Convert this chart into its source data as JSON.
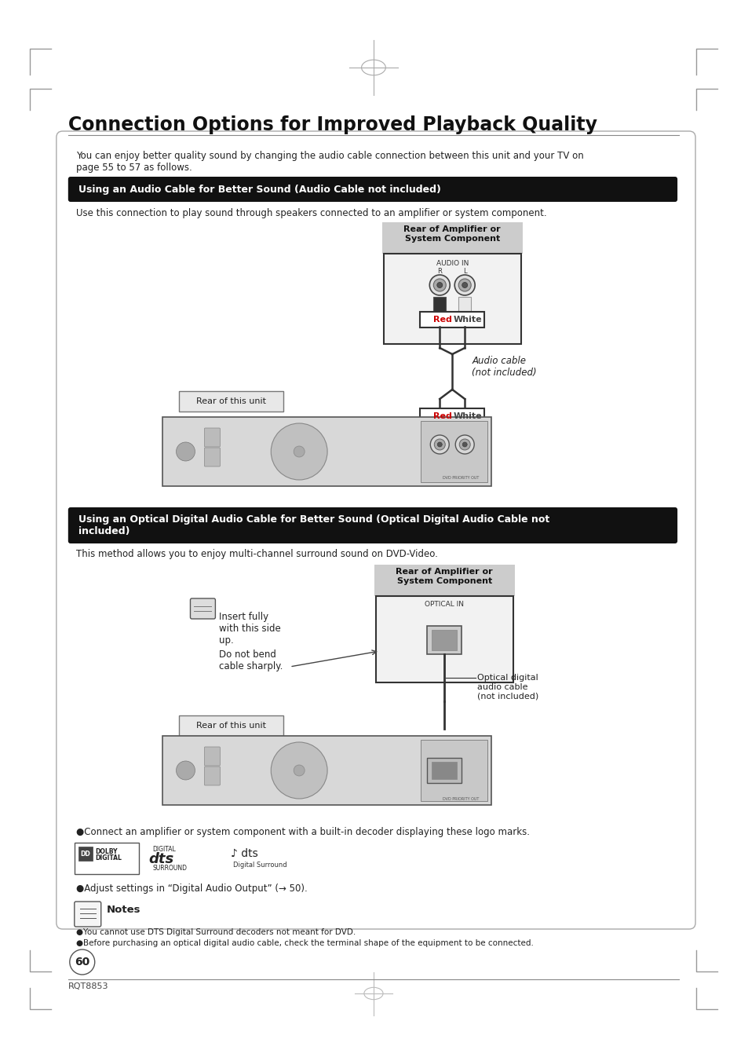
{
  "title": "Connection Options for Improved Playback Quality",
  "bg_color": "#ffffff",
  "page_num": "60",
  "model": "RQT8853",
  "intro_text": "You can enjoy better quality sound by changing the audio cable connection between this unit and your TV on\npage 55 to 57 as follows.",
  "section1_title": "Using an Audio Cable for Better Sound (Audio Cable not included)",
  "section1_desc": "Use this connection to play sound through speakers connected to an amplifier or system component.",
  "section2_title": "Using an Optical Digital Audio Cable for Better Sound (Optical Digital Audio Cable not\nincluded)",
  "section2_desc": "This method allows you to enjoy multi-channel surround sound on DVD-Video.",
  "bullet1": "●Connect an amplifier or system component with a built-in decoder displaying these logo marks.",
  "bullet2": "●Adjust settings in “Digital Audio Output” (→ 50).",
  "notes_title": "Notes",
  "note1": "●You cannot use DTS Digital Surround decoders not meant for DVD.",
  "note2": "●Before purchasing an optical digital audio cable, check the terminal shape of the equipment to be connected.",
  "rear_amp": "Rear of Amplifier or\nSystem Component",
  "rear_unit": "Rear of this unit",
  "audio_in": "AUDIO IN",
  "r_label": "R",
  "l_label": "L",
  "red_label": "Red",
  "white_label": "White",
  "audio_cable": "Audio cable\n(not included)",
  "optical_in": "OPTICAL IN",
  "optical_cable": "Optical digital\naudio cable\n(not included)",
  "insert_note": "Insert fully\nwith this side\nup.",
  "bend_note": "Do not bend\ncable sharply."
}
